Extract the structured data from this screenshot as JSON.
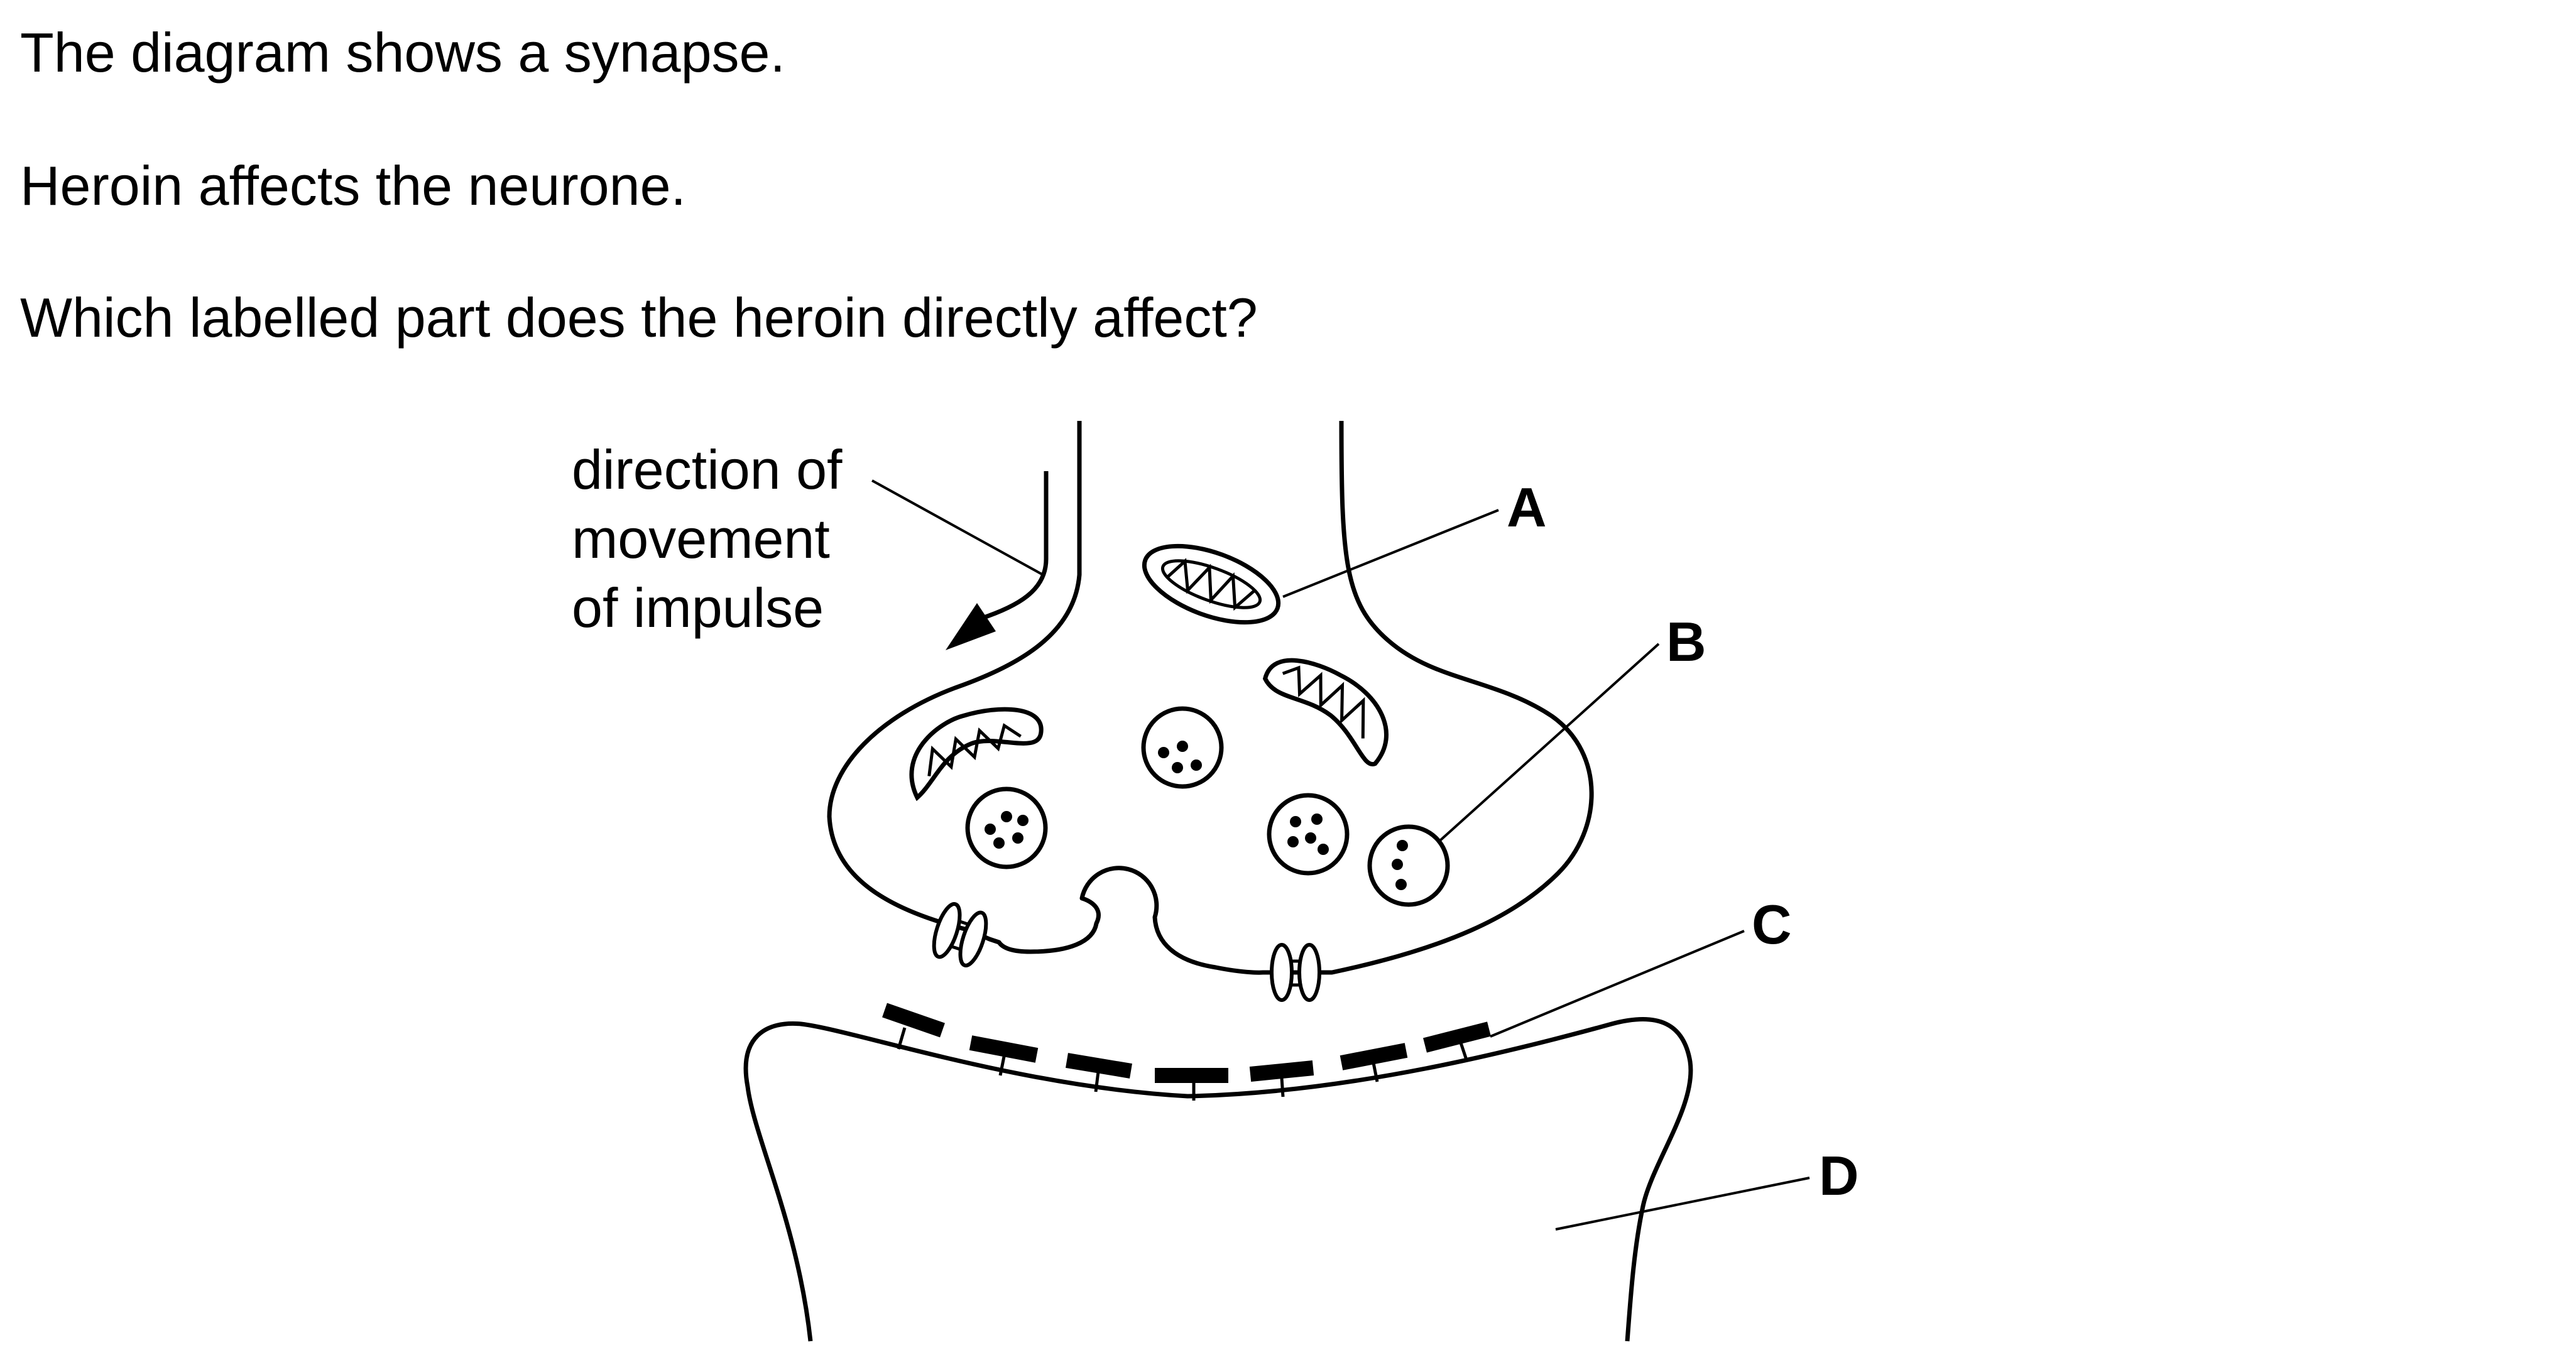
{
  "question": {
    "line1": "The diagram shows a synapse.",
    "line2": "Heroin affects the neurone.",
    "line3": "Which labelled part does the heroin directly affect?"
  },
  "diagram": {
    "direction_label": [
      "direction of",
      "movement",
      "of impulse"
    ],
    "part_labels": [
      "A",
      "B",
      "C",
      "D"
    ]
  }
}
